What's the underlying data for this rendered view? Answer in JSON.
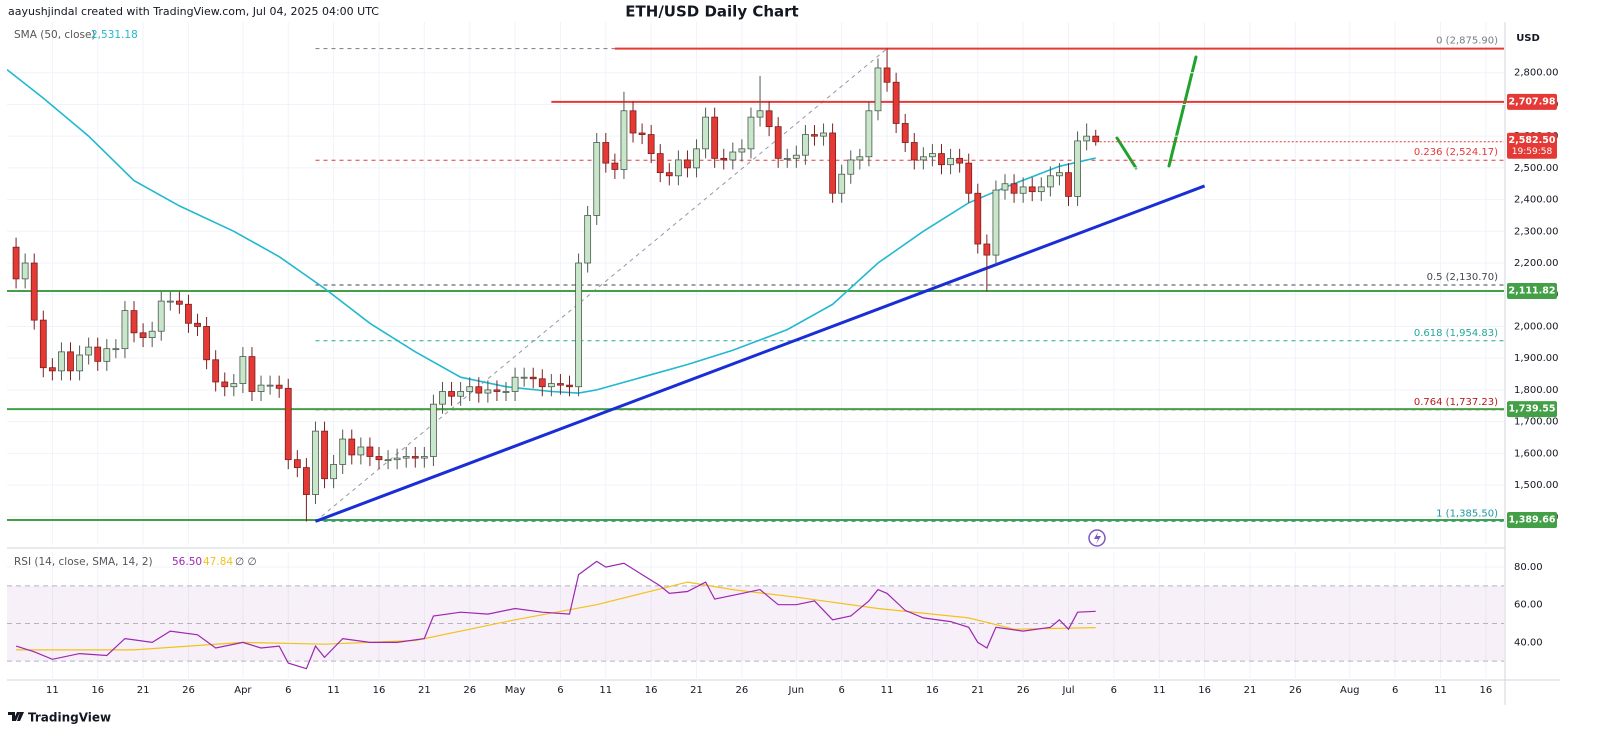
{
  "header": {
    "author_line": "aayushjindal created with TradingView.com, Jul 04, 2025 04:00 UTC"
  },
  "footer": {
    "brand": "TradingView"
  },
  "chart_data": {
    "type": "candlestick",
    "title": "ETH/USD Daily Chart",
    "currency": "USD",
    "x": [
      "Mar 7",
      "Mar 8",
      "Mar 9",
      "Mar 10",
      "Mar 11",
      "Mar 12",
      "Mar 13",
      "Mar 14",
      "Mar 15",
      "Mar 16",
      "Mar 17",
      "Mar 18",
      "Mar 19",
      "Mar 20",
      "Mar 21",
      "Mar 22",
      "Mar 23",
      "Mar 24",
      "Mar 25",
      "Mar 26",
      "Mar 27",
      "Mar 28",
      "Mar 29",
      "Mar 30",
      "Mar 31",
      "Apr 1",
      "Apr 2",
      "Apr 3",
      "Apr 4",
      "Apr 5",
      "Apr 6",
      "Apr 7",
      "Apr 8",
      "Apr 9",
      "Apr 10",
      "Apr 11",
      "Apr 12",
      "Apr 13",
      "Apr 14",
      "Apr 15",
      "Apr 16",
      "Apr 17",
      "Apr 18",
      "Apr 19",
      "Apr 20",
      "Apr 21",
      "Apr 22",
      "Apr 23",
      "Apr 24",
      "Apr 25",
      "Apr 26",
      "Apr 27",
      "Apr 28",
      "Apr 29",
      "Apr 30",
      "May 1",
      "May 2",
      "May 3",
      "May 4",
      "May 5",
      "May 6",
      "May 7",
      "May 8",
      "May 9",
      "May 10",
      "May 11",
      "May 12",
      "May 13",
      "May 14",
      "May 15",
      "May 16",
      "May 17",
      "May 18",
      "May 19",
      "May 20",
      "May 21",
      "May 22",
      "May 23",
      "May 24",
      "May 25",
      "May 26",
      "May 27",
      "May 28",
      "May 29",
      "May 30",
      "May 31",
      "Jun 1",
      "Jun 2",
      "Jun 3",
      "Jun 4",
      "Jun 5",
      "Jun 6",
      "Jun 7",
      "Jun 8",
      "Jun 9",
      "Jun 10",
      "Jun 11",
      "Jun 12",
      "Jun 13",
      "Jun 14",
      "Jun 15",
      "Jun 16",
      "Jun 17",
      "Jun 18",
      "Jun 19",
      "Jun 20",
      "Jun 21",
      "Jun 22",
      "Jun 23",
      "Jun 24",
      "Jun 25",
      "Jun 26",
      "Jun 27",
      "Jun 28",
      "Jun 29",
      "Jun 30",
      "Jul 1",
      "Jul 2",
      "Jul 3",
      "Jul 4"
    ],
    "open": [
      2250,
      2150,
      2200,
      2020,
      1870,
      1860,
      1920,
      1860,
      1910,
      1935,
      1890,
      1930,
      1930,
      2050,
      1980,
      1965,
      1985,
      2080,
      2080,
      2070,
      2010,
      2000,
      1895,
      1825,
      1810,
      1820,
      1905,
      1795,
      1815,
      1815,
      1805,
      1580,
      1555,
      1470,
      1670,
      1520,
      1565,
      1645,
      1595,
      1620,
      1590,
      1580,
      1580,
      1585,
      1590,
      1585,
      1590,
      1755,
      1795,
      1780,
      1795,
      1810,
      1790,
      1800,
      1795,
      1795,
      1840,
      1840,
      1835,
      1810,
      1820,
      1815,
      1810,
      2200,
      2350,
      2580,
      2515,
      2495,
      2680,
      2610,
      2605,
      2545,
      2485,
      2475,
      2525,
      2500,
      2560,
      2660,
      2530,
      2525,
      2550,
      2560,
      2660,
      2680,
      2630,
      2530,
      2530,
      2540,
      2605,
      2600,
      2610,
      2420,
      2480,
      2525,
      2535,
      2680,
      2815,
      2770,
      2640,
      2580,
      2525,
      2535,
      2545,
      2510,
      2530,
      2515,
      2420,
      2260,
      2225,
      2430,
      2450,
      2420,
      2440,
      2425,
      2440,
      2475,
      2485,
      2410,
      2585,
      2600
    ],
    "high": [
      2280,
      2230,
      2230,
      2050,
      1900,
      1950,
      1950,
      1940,
      1965,
      1965,
      1960,
      1960,
      2080,
      2080,
      2010,
      2015,
      2110,
      2110,
      2110,
      2100,
      2040,
      2030,
      1925,
      1855,
      1850,
      1935,
      1935,
      1845,
      1845,
      1845,
      1835,
      1610,
      1585,
      1700,
      1700,
      1595,
      1675,
      1675,
      1650,
      1650,
      1620,
      1610,
      1615,
      1620,
      1620,
      1620,
      1785,
      1825,
      1825,
      1825,
      1840,
      1840,
      1830,
      1830,
      1825,
      1870,
      1870,
      1870,
      1865,
      1850,
      1850,
      1845,
      2230,
      2380,
      2610,
      2610,
      2545,
      2740,
      2710,
      2640,
      2635,
      2575,
      2515,
      2555,
      2555,
      2590,
      2690,
      2690,
      2560,
      2580,
      2590,
      2690,
      2790,
      2710,
      2660,
      2560,
      2570,
      2635,
      2635,
      2640,
      2640,
      2510,
      2555,
      2560,
      2710,
      2845,
      2876,
      2800,
      2670,
      2610,
      2565,
      2575,
      2575,
      2560,
      2560,
      2545,
      2450,
      2290,
      2460,
      2480,
      2480,
      2470,
      2470,
      2470,
      2505,
      2515,
      2515,
      2615,
      2640,
      2620
    ],
    "low": [
      2120,
      2120,
      1990,
      1840,
      1830,
      1830,
      1830,
      1830,
      1880,
      1860,
      1860,
      1900,
      1900,
      1950,
      1935,
      1935,
      1955,
      2050,
      2040,
      1980,
      1970,
      1865,
      1795,
      1780,
      1780,
      1790,
      1765,
      1765,
      1785,
      1775,
      1550,
      1525,
      1385,
      1440,
      1490,
      1490,
      1535,
      1565,
      1565,
      1560,
      1550,
      1550,
      1550,
      1555,
      1555,
      1555,
      1560,
      1725,
      1750,
      1750,
      1765,
      1760,
      1760,
      1765,
      1765,
      1765,
      1810,
      1805,
      1780,
      1780,
      1785,
      1780,
      1780,
      2170,
      2320,
      2485,
      2465,
      2465,
      2580,
      2575,
      2515,
      2455,
      2445,
      2445,
      2470,
      2470,
      2530,
      2500,
      2495,
      2495,
      2520,
      2530,
      2630,
      2600,
      2500,
      2500,
      2500,
      2510,
      2570,
      2570,
      2390,
      2390,
      2450,
      2495,
      2505,
      2650,
      2740,
      2610,
      2550,
      2495,
      2495,
      2505,
      2480,
      2480,
      2485,
      2390,
      2230,
      2111,
      2195,
      2400,
      2390,
      2390,
      2395,
      2395,
      2410,
      2445,
      2380,
      2380,
      2555,
      2570
    ],
    "close": [
      2150,
      2200,
      2020,
      1870,
      1860,
      1920,
      1860,
      1910,
      1935,
      1890,
      1930,
      1930,
      2050,
      1980,
      1965,
      1985,
      2080,
      2080,
      2070,
      2010,
      2000,
      1895,
      1825,
      1810,
      1820,
      1905,
      1795,
      1815,
      1815,
      1805,
      1580,
      1555,
      1470,
      1670,
      1520,
      1565,
      1645,
      1595,
      1620,
      1590,
      1580,
      1580,
      1585,
      1590,
      1585,
      1590,
      1755,
      1795,
      1780,
      1795,
      1810,
      1790,
      1800,
      1795,
      1795,
      1840,
      1840,
      1835,
      1810,
      1820,
      1815,
      1810,
      2200,
      2350,
      2580,
      2515,
      2495,
      2680,
      2610,
      2605,
      2545,
      2485,
      2475,
      2525,
      2500,
      2560,
      2660,
      2530,
      2525,
      2550,
      2560,
      2660,
      2680,
      2630,
      2530,
      2530,
      2540,
      2605,
      2600,
      2610,
      2420,
      2480,
      2525,
      2535,
      2680,
      2815,
      2770,
      2640,
      2580,
      2525,
      2535,
      2545,
      2510,
      2530,
      2515,
      2420,
      2260,
      2225,
      2430,
      2450,
      2420,
      2440,
      2425,
      2440,
      2475,
      2485,
      2410,
      2585,
      2600,
      2582.5
    ],
    "up_color": "#c8e6c9",
    "up_border": "#4e5a50",
    "down_color": "#e53935",
    "down_border": "#7a1f1f",
    "xlim": [
      "Mar 6",
      "Aug 18"
    ],
    "xticks": [
      {
        "value": "Mar 11",
        "label": "11"
      },
      {
        "value": "Mar 16",
        "label": "16"
      },
      {
        "value": "Mar 21",
        "label": "21"
      },
      {
        "value": "Mar 26",
        "label": "26"
      },
      {
        "value": "Apr 1",
        "label": "Apr"
      },
      {
        "value": "Apr 6",
        "label": "6"
      },
      {
        "value": "Apr 11",
        "label": "11"
      },
      {
        "value": "Apr 16",
        "label": "16"
      },
      {
        "value": "Apr 21",
        "label": "21"
      },
      {
        "value": "Apr 26",
        "label": "26"
      },
      {
        "value": "May 1",
        "label": "May"
      },
      {
        "value": "May 6",
        "label": "6"
      },
      {
        "value": "May 11",
        "label": "11"
      },
      {
        "value": "May 16",
        "label": "16"
      },
      {
        "value": "May 21",
        "label": "21"
      },
      {
        "value": "May 26",
        "label": "26"
      },
      {
        "value": "Jun 1",
        "label": "Jun"
      },
      {
        "value": "Jun 6",
        "label": "6"
      },
      {
        "value": "Jun 11",
        "label": "11"
      },
      {
        "value": "Jun 16",
        "label": "16"
      },
      {
        "value": "Jun 21",
        "label": "21"
      },
      {
        "value": "Jun 26",
        "label": "26"
      },
      {
        "value": "Jul 1",
        "label": "Jul"
      },
      {
        "value": "Jul 6",
        "label": "6"
      },
      {
        "value": "Jul 11",
        "label": "11"
      },
      {
        "value": "Jul 16",
        "label": "16"
      },
      {
        "value": "Jul 21",
        "label": "21"
      },
      {
        "value": "Jul 26",
        "label": "26"
      },
      {
        "value": "Aug 1",
        "label": "Aug"
      },
      {
        "value": "Aug 6",
        "label": "6"
      },
      {
        "value": "Aug 11",
        "label": "11"
      },
      {
        "value": "Aug 16",
        "label": "16"
      }
    ],
    "ylim": [
      1311,
      2941
    ],
    "yticks": [
      {
        "value": 1400,
        "label": "1,400.00"
      },
      {
        "value": 1500,
        "label": "1,500.00"
      },
      {
        "value": 1600,
        "label": "1,600.00"
      },
      {
        "value": 1700,
        "label": "1,700.00"
      },
      {
        "value": 1800,
        "label": "1,800.00"
      },
      {
        "value": 1900,
        "label": "1,900.00"
      },
      {
        "value": 2000,
        "label": "2,000.00"
      },
      {
        "value": 2100,
        "label": "2,100.00"
      },
      {
        "value": 2200,
        "label": "2,200.00"
      },
      {
        "value": 2300,
        "label": "2,300.00"
      },
      {
        "value": 2400,
        "label": "2,400.00"
      },
      {
        "value": 2500,
        "label": "2,500.00"
      },
      {
        "value": 2600,
        "label": "2,600.00"
      },
      {
        "value": 2700,
        "label": "2,700.00"
      },
      {
        "value": 2800,
        "label": "2,800.00"
      }
    ],
    "grid": true,
    "indicator": {
      "name": "SMA (50, close)",
      "last": {
        "value": 2531.18,
        "label": "2,531.18"
      },
      "color": "#22b8cf",
      "x": [
        "Mar 6",
        "Mar 10",
        "Mar 15",
        "Mar 20",
        "Mar 25",
        "Mar 31",
        "Apr 5",
        "Apr 10",
        "Apr 15",
        "Apr 20",
        "Apr 25",
        "Apr 30",
        "May 5",
        "May 8",
        "May 10",
        "May 15",
        "May 20",
        "May 25",
        "May 31",
        "Jun 5",
        "Jun 10",
        "Jun 15",
        "Jun 20",
        "Jun 25",
        "Jun 30",
        "Jul 4"
      ],
      "values": [
        2810,
        2720,
        2600,
        2460,
        2380,
        2300,
        2220,
        2120,
        2010,
        1920,
        1840,
        1810,
        1795,
        1790,
        1800,
        1840,
        1880,
        1925,
        1990,
        2070,
        2200,
        2300,
        2390,
        2450,
        2505,
        2531.18
      ]
    },
    "levels": [
      {
        "value": 2875.9,
        "color": "#e53935",
        "start": "May 12"
      },
      {
        "value": 2707.98,
        "label": "2,707.98",
        "color": "#e53935",
        "start": "May 5"
      },
      {
        "value": 2111.82,
        "label": "2,111.82",
        "color": "#43a047"
      },
      {
        "value": 1739.55,
        "label": "1,739.55",
        "color": "#43a047"
      },
      {
        "value": 1389.66,
        "label": "1,389.66",
        "color": "#43a047"
      }
    ],
    "last_price": {
      "value": 2582.5,
      "label": "2,582.50",
      "countdown": "19:59:58",
      "color": "#e53935"
    },
    "fib": {
      "from": {
        "x": "Apr 9",
        "y": 1385.5
      },
      "to": {
        "x": "Jun 11",
        "y": 2875.9
      },
      "levels": [
        {
          "value": 2875.9,
          "label": "0 (2,875.90)",
          "color": "#787b86"
        },
        {
          "value": 2524.17,
          "label": "0.236 (2,524.17)",
          "color": "#e53935"
        },
        {
          "value": 2130.7,
          "label": "0.5 (2,130.70)",
          "color": "#434651"
        },
        {
          "value": 1954.83,
          "label": "0.618 (1,954.83)",
          "color": "#26a69a"
        },
        {
          "value": 1737.23,
          "label": "0.764 (1,737.23)",
          "color": "#b71c1c"
        },
        {
          "value": 1385.5,
          "label": "1 (1,385.50)",
          "color": "#2196a3"
        }
      ]
    },
    "trendline": {
      "from": {
        "x": "Apr 9",
        "y": 1385.5
      },
      "to": {
        "x": "Jul 16",
        "y": 2443
      },
      "color": "#1a2ed6"
    },
    "rsi": {
      "title": "RSI (14, close, SMA, 14, 2)",
      "last": {
        "value": 56.5,
        "label": "56.50"
      },
      "sma_last": {
        "value": 47.84,
        "label": "47.84"
      },
      "flags": "∅ ∅",
      "color": "#9c27b0",
      "sma_color": "#f2c21b",
      "x": [
        "Mar 7",
        "Mar 9",
        "Mar 11",
        "Mar 14",
        "Mar 17",
        "Mar 19",
        "Mar 22",
        "Mar 24",
        "Mar 27",
        "Mar 29",
        "Apr 1",
        "Apr 3",
        "Apr 5",
        "Apr 6",
        "Apr 8",
        "Apr 9",
        "Apr 10",
        "Apr 12",
        "Apr 15",
        "Apr 18",
        "Apr 21",
        "Apr 22",
        "Apr 25",
        "Apr 28",
        "May 1",
        "May 4",
        "May 7",
        "May 8",
        "May 10",
        "May 11",
        "May 13",
        "May 15",
        "May 17",
        "May 18",
        "May 20",
        "May 22",
        "May 23",
        "May 26",
        "May 28",
        "May 30",
        "Jun 1",
        "Jun 3",
        "Jun 5",
        "Jun 7",
        "Jun 9",
        "Jun 10",
        "Jun 11",
        "Jun 13",
        "Jun 15",
        "Jun 18",
        "Jun 20",
        "Jun 21",
        "Jun 22",
        "Jun 23",
        "Jun 26",
        "Jun 29",
        "Jun 30",
        "Jul 1",
        "Jul 2",
        "Jul 4"
      ],
      "values": [
        38,
        35,
        31,
        34,
        33,
        42,
        40,
        46,
        44,
        37,
        40,
        37,
        38,
        29,
        26,
        38,
        32,
        42,
        40,
        40,
        42,
        54,
        56,
        55,
        58,
        56,
        55,
        76,
        83,
        80,
        82,
        76,
        70,
        66,
        67,
        72,
        63,
        66,
        68,
        60,
        60,
        62,
        52,
        54,
        62,
        68,
        66,
        57,
        53,
        51,
        48,
        40,
        37,
        48,
        46,
        48,
        52,
        47,
        56,
        56.5
      ],
      "sma_x": [
        "Mar 7",
        "Mar 20",
        "Apr 1",
        "Apr 10",
        "Apr 20",
        "May 1",
        "May 10",
        "May 20",
        "May 25",
        "Jun 1",
        "Jun 10",
        "Jun 20",
        "Jun 25",
        "Jul 4"
      ],
      "sma_values": [
        36,
        36,
        40,
        39,
        41,
        52,
        60,
        72,
        68,
        64,
        58,
        53,
        47,
        47.84
      ],
      "ylim": [
        20,
        88
      ],
      "yticks": [
        {
          "value": 40,
          "label": "40.00"
        },
        {
          "value": 60,
          "label": "60.00"
        },
        {
          "value": 80,
          "label": "80.00"
        }
      ],
      "bands": [
        70,
        50,
        30
      ]
    }
  }
}
